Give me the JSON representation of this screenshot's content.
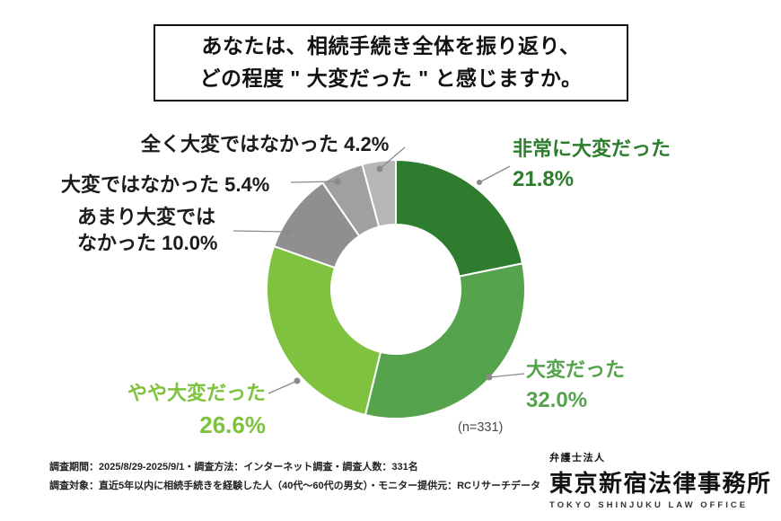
{
  "title": {
    "line1": "あなたは、相続手続き全体を振り返り、",
    "line2": "どの程度 \" 大変だった \" と感じますか。"
  },
  "chart_data": {
    "type": "pie",
    "style": "donut",
    "title": "あなたは、相続手続き全体を振り返り、どの程度\"大変だった\"と感じますか。",
    "n": 331,
    "n_label": "(n=331)",
    "start_angle_deg": 0,
    "direction": "clockwise",
    "inner_radius_ratio": 0.5,
    "segments": [
      {
        "label": "非常に大変だった",
        "value": 21.8,
        "display": "21.8%",
        "color": "#2e7d2e"
      },
      {
        "label": "大変だった",
        "value": 32.0,
        "display": "32.0%",
        "color": "#55a34c"
      },
      {
        "label": "やや大変だった",
        "value": 26.6,
        "display": "26.6%",
        "color": "#7ec23f"
      },
      {
        "label": "あまり大変ではなかった",
        "value": 10.0,
        "display": "10.0%",
        "color": "#8f8f8f"
      },
      {
        "label": "大変ではなかった",
        "value": 5.4,
        "display": "5.4%",
        "color": "#a0a0a0"
      },
      {
        "label": "全く大変ではなかった",
        "value": 4.2,
        "display": "4.2%",
        "color": "#b6b6b6"
      }
    ]
  },
  "callouts": {
    "zenku": "全く大変ではなかった 4.2%",
    "taihen_dewa": "大変ではなかった 5.4%",
    "amari_line1": "あまり大変では",
    "amari_line2": "なかった 10.0%",
    "hijou_label": "非常に大変だった",
    "hijou_pct": "21.8%",
    "taihen_label": "大変だった",
    "taihen_pct": "32.0%",
    "yaya_label": "やや大変だった",
    "yaya_pct": "26.6%"
  },
  "footer": {
    "line1": "調査期間：2025/8/29-2025/9/1・調査方法：インターネット調査・調査人数：331名",
    "line2": "調査対象：直近5年以内に相続手続きを経験した人（40代～60代の男女）・モニター提供元：RCリサーチデータ"
  },
  "logo": {
    "firm_type": "弁護士法人",
    "name": "東京新宿法律事務所",
    "name_en": "TOKYO SHINJUKU LAW OFFICE"
  }
}
